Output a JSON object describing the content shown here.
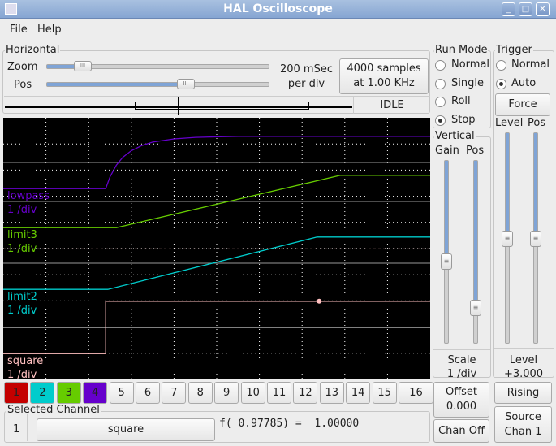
{
  "window": {
    "title": "HAL Oscilloscope",
    "controls": [
      "minimize",
      "maximize",
      "close"
    ]
  },
  "menu": {
    "file": "File",
    "help": "Help"
  },
  "horizontal": {
    "legend": "Horizontal",
    "zoom_label": "Zoom",
    "pos_label": "Pos",
    "zoom_value": 0.16,
    "pos_value": 0.62,
    "timebase_line1": "200 mSec",
    "timebase_line2": "per div",
    "samples_line1": "4000 samples",
    "samples_line2": "at 1.00 KHz",
    "status": "IDLE"
  },
  "run_mode": {
    "legend": "Run Mode",
    "options": [
      "Normal",
      "Single",
      "Roll",
      "Stop"
    ],
    "selected": "Stop"
  },
  "trigger": {
    "legend": "Trigger",
    "options": [
      "Normal",
      "Auto"
    ],
    "selected": "Auto",
    "force": "Force",
    "level_label": "Level",
    "pos_label": "Pos",
    "level_value": 0.5,
    "pos_value": 0.5,
    "level_caption": "Level",
    "level_readout": "+3.000",
    "edge": "Rising",
    "source_line1": "Source",
    "source_line2": "Chan  1"
  },
  "vertical": {
    "legend": "Vertical",
    "gain_label": "Gain",
    "pos_label": "Pos",
    "gain_value": 0.45,
    "pos_value": 0.2,
    "scale_caption": "Scale",
    "scale_readout": "1 /div",
    "offset_line1": "Offset",
    "offset_line2": "0.000",
    "chan_off": "Chan Off"
  },
  "channels": [
    {
      "label": "1",
      "color": "#c40000"
    },
    {
      "label": "2",
      "color": "#00cccc"
    },
    {
      "label": "3",
      "color": "#66cc00"
    },
    {
      "label": "4",
      "color": "#6600cc"
    },
    {
      "label": "5"
    },
    {
      "label": "6"
    },
    {
      "label": "7"
    },
    {
      "label": "8"
    },
    {
      "label": "9"
    },
    {
      "label": "10"
    },
    {
      "label": "11"
    },
    {
      "label": "12"
    },
    {
      "label": "13"
    },
    {
      "label": "14"
    },
    {
      "label": "15"
    },
    {
      "label": "16"
    }
  ],
  "selected_channel": {
    "legend": "Selected Channel",
    "number": "1",
    "name": "square",
    "readout": "f( 0.97785) =  1.00000"
  },
  "chart_data": {
    "type": "line",
    "x_range_s": [
      0,
      2
    ],
    "y_divisions": 10,
    "traces": [
      {
        "name": "lowpass",
        "scale": "1 /div",
        "color": "#6600cc",
        "x": [
          0,
          0.48,
          0.5,
          0.53,
          0.56,
          0.6,
          0.65,
          0.7,
          0.8,
          0.9,
          1.1,
          2.0
        ],
        "y": [
          -1,
          -1,
          -0.55,
          -0.1,
          0.2,
          0.45,
          0.65,
          0.78,
          0.9,
          0.96,
          1,
          1
        ]
      },
      {
        "name": "limit3",
        "scale": "1 /div",
        "color": "#66cc00",
        "x": [
          0,
          0.53,
          1.58,
          2.0
        ],
        "y": [
          -1,
          -1,
          1,
          1
        ]
      },
      {
        "name": "limit2",
        "scale": "1 /div",
        "color": "#00cccc",
        "x": [
          0,
          0.49,
          1.47,
          2.0
        ],
        "y": [
          -1,
          -1,
          1,
          1
        ]
      },
      {
        "name": "square",
        "scale": "1 /div",
        "color": "#ffc0c0",
        "x": [
          0,
          0.48,
          0.48,
          2.0
        ],
        "y": [
          -1,
          -1,
          1,
          1
        ]
      }
    ],
    "trigger_point": {
      "x": 1.48,
      "y": 1
    },
    "trigger_level_divs": 3
  }
}
